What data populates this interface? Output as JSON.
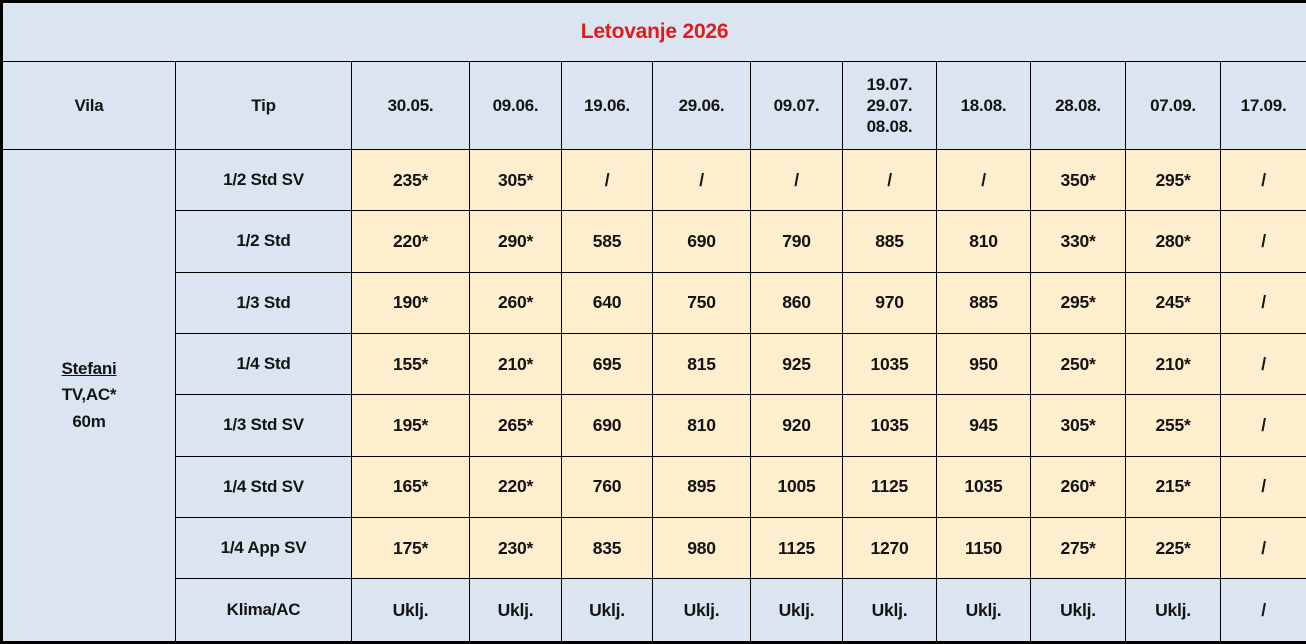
{
  "title": "Letovanje 2026",
  "colors": {
    "header_bg": "#dbe5f1",
    "price_bg": "#fdeecd",
    "title_color": "#e01b1b",
    "border": "#000000"
  },
  "columns": [
    "Vila",
    "Tip",
    "30.05.",
    "09.06.",
    "19.06.",
    "29.06.",
    "09.07.",
    "19.07.\n29.07.\n08.08.",
    "18.08.",
    "28.08.",
    "07.09.",
    "17.09."
  ],
  "vila": {
    "name": "Stefani",
    "amenities": "TV,AC*",
    "distance": "60m"
  },
  "rows": [
    {
      "tip": "1/2 Std SV",
      "highlight": true,
      "values": [
        "235*",
        "305*",
        "/",
        "/",
        "/",
        "/",
        "/",
        "350*",
        "295*",
        "/"
      ]
    },
    {
      "tip": "1/2 Std",
      "highlight": true,
      "values": [
        "220*",
        "290*",
        "585",
        "690",
        "790",
        "885",
        "810",
        "330*",
        "280*",
        "/"
      ]
    },
    {
      "tip": "1/3 Std",
      "highlight": true,
      "values": [
        "190*",
        "260*",
        "640",
        "750",
        "860",
        "970",
        "885",
        "295*",
        "245*",
        "/"
      ]
    },
    {
      "tip": "1/4 Std",
      "highlight": true,
      "values": [
        "155*",
        "210*",
        "695",
        "815",
        "925",
        "1035",
        "950",
        "250*",
        "210*",
        "/"
      ]
    },
    {
      "tip": "1/3 Std SV",
      "highlight": true,
      "values": [
        "195*",
        "265*",
        "690",
        "810",
        "920",
        "1035",
        "945",
        "305*",
        "255*",
        "/"
      ]
    },
    {
      "tip": "1/4 Std SV",
      "highlight": true,
      "values": [
        "165*",
        "220*",
        "760",
        "895",
        "1005",
        "1125",
        "1035",
        "260*",
        "215*",
        "/"
      ]
    },
    {
      "tip": "1/4 App SV",
      "highlight": true,
      "values": [
        "175*",
        "230*",
        "835",
        "980",
        "1125",
        "1270",
        "1150",
        "275*",
        "225*",
        "/"
      ]
    },
    {
      "tip": "Klima/AC",
      "highlight": false,
      "values": [
        "Uklj.",
        "Uklj.",
        "Uklj.",
        "Uklj.",
        "Uklj.",
        "Uklj.",
        "Uklj.",
        "Uklj.",
        "Uklj.",
        "/"
      ]
    }
  ]
}
